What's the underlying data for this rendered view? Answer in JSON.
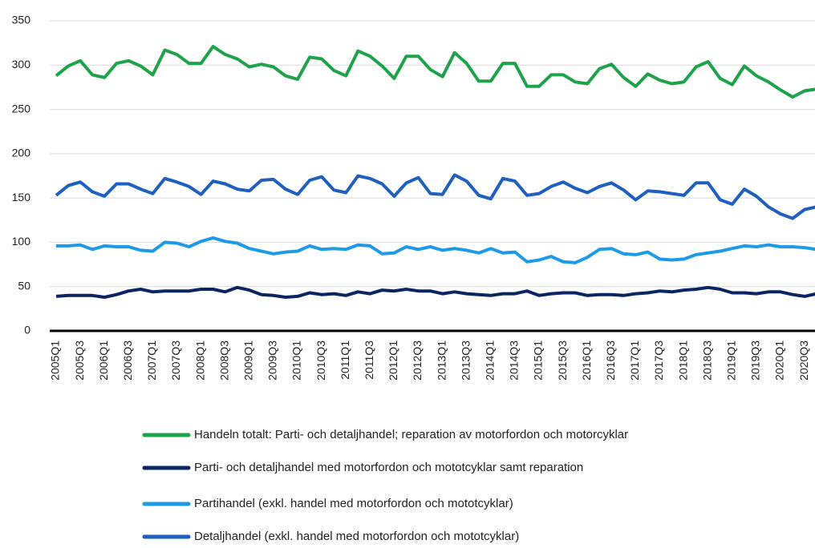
{
  "chart_data": {
    "type": "line",
    "categories": [
      "2005Q1",
      null,
      "2005Q3",
      null,
      "2006Q1",
      null,
      "2006Q3",
      null,
      "2007Q1",
      null,
      "2007Q3",
      null,
      "2008Q1",
      null,
      "2008Q3",
      null,
      "2009Q1",
      null,
      "2009Q3",
      null,
      "2010Q1",
      null,
      "2010Q3",
      null,
      "2011Q1",
      null,
      "2011Q3",
      null,
      "2012Q1",
      null,
      "2012Q3",
      null,
      "2013Q1",
      null,
      "2013Q3",
      null,
      "2014Q1",
      null,
      "2014Q3",
      null,
      "2015Q1",
      null,
      "2015Q3",
      null,
      "2016Q1",
      null,
      "2016Q3",
      null,
      "2017Q1",
      null,
      "2017Q3",
      null,
      "2018Q1",
      null,
      "2018Q3",
      null,
      "2019Q1",
      null,
      "2019Q3",
      null,
      "2020Q1",
      null,
      "2020Q3",
      null
    ],
    "series": [
      {
        "name": "Handeln totalt: Parti- och detaljhandel; reparation av motorfordon och motorcyklar",
        "color": "#1fa34a",
        "values": [
          288,
          299,
          305,
          289,
          286,
          302,
          305,
          299,
          289,
          317,
          312,
          302,
          302,
          321,
          312,
          307,
          298,
          301,
          298,
          288,
          284,
          309,
          307,
          294,
          288,
          316,
          310,
          299,
          285,
          310,
          310,
          295,
          287,
          314,
          302,
          282,
          282,
          302,
          302,
          276,
          276,
          289,
          289,
          281,
          279,
          296,
          301,
          286,
          276,
          290,
          283,
          279,
          281,
          298,
          304,
          285,
          278,
          299,
          288,
          281,
          272,
          264,
          271,
          273
        ]
      },
      {
        "name": "Parti- och detaljhandel med motorfordon och mototcyklar samt reparation",
        "color": "#0b2463",
        "values": [
          39,
          40,
          40,
          40,
          38,
          41,
          45,
          47,
          44,
          45,
          45,
          45,
          47,
          47,
          44,
          49,
          46,
          41,
          40,
          38,
          39,
          43,
          41,
          42,
          40,
          44,
          42,
          46,
          45,
          47,
          45,
          45,
          42,
          44,
          42,
          41,
          40,
          42,
          42,
          45,
          40,
          42,
          43,
          43,
          40,
          41,
          41,
          40,
          42,
          43,
          45,
          44,
          46,
          47,
          49,
          47,
          43,
          43,
          42,
          44,
          44,
          41,
          39,
          42
        ]
      },
      {
        "name": "Partihandel (exkl. handel med motorfordon och mototcyklar)",
        "color": "#1e9be8",
        "values": [
          96,
          96,
          97,
          92,
          96,
          95,
          95,
          91,
          90,
          100,
          99,
          95,
          101,
          105,
          101,
          99,
          93,
          90,
          87,
          89,
          90,
          96,
          92,
          93,
          92,
          97,
          96,
          87,
          88,
          95,
          92,
          95,
          91,
          93,
          91,
          88,
          93,
          88,
          89,
          78,
          80,
          84,
          78,
          77,
          83,
          92,
          93,
          87,
          86,
          89,
          81,
          80,
          81,
          86,
          88,
          90,
          93,
          96,
          95,
          97,
          95,
          95,
          94,
          92
        ]
      },
      {
        "name": "Detaljhandel (exkl. handel med motorfordon och mototcyklar)",
        "color": "#1f5fc0",
        "values": [
          153,
          164,
          168,
          157,
          152,
          166,
          166,
          160,
          155,
          172,
          168,
          163,
          154,
          169,
          166,
          160,
          158,
          170,
          171,
          160,
          154,
          170,
          174,
          159,
          156,
          175,
          172,
          166,
          152,
          167,
          173,
          155,
          154,
          176,
          169,
          153,
          149,
          172,
          169,
          153,
          155,
          163,
          168,
          161,
          156,
          163,
          167,
          159,
          148,
          158,
          157,
          155,
          153,
          167,
          167,
          148,
          143,
          160,
          152,
          140,
          132,
          127,
          137,
          140
        ]
      }
    ],
    "ylim": [
      0,
      350
    ],
    "yticks": [
      0,
      50,
      100,
      150,
      200,
      250,
      300,
      350
    ],
    "grid": true,
    "legend": "bottom"
  }
}
